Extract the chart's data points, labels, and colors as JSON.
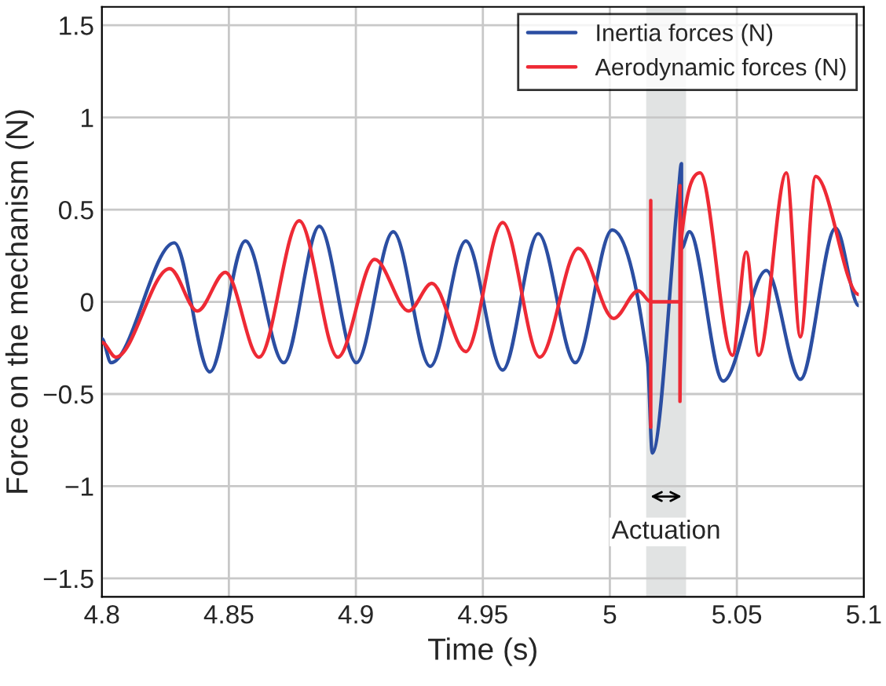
{
  "chart_data": {
    "type": "line",
    "xlabel": "Time (s)",
    "ylabel": "Force on the mechanism (N)",
    "xlim": [
      4.8,
      5.1
    ],
    "xticks": [
      4.8,
      4.85,
      4.9,
      4.95,
      5,
      5.05,
      5.1
    ],
    "ylim": [
      -1.6,
      1.6
    ],
    "yticks": [
      {
        "value": -1.5,
        "label": "−1.5"
      },
      {
        "value": -1,
        "label": "−1"
      },
      {
        "value": -0.5,
        "label": "−0.5"
      },
      0,
      0.5,
      1,
      1.5
    ],
    "grid": true,
    "legend": "top right",
    "line_style": "solid",
    "bands": [
      {
        "axis": "x",
        "from": 5.0143,
        "to": 5.03,
        "label": "Actuation",
        "color": "#e1e3e3"
      }
    ],
    "series": [
      {
        "name": "Inertia forces (N)",
        "color": "#2b4ea2",
        "x": [
          4.8,
          4.8036,
          4.8285,
          4.8425,
          4.8565,
          4.8716,
          4.8856,
          4.9002,
          4.9147,
          4.9293,
          4.9433,
          4.9578,
          4.9718,
          4.9864,
          5.0009,
          5.0149,
          5.0167,
          5.027,
          5.0282,
          5.0282,
          5.0313,
          5.0446,
          5.0616,
          5.075,
          5.0889,
          5.098
        ],
        "values": [
          -0.2,
          -0.33,
          0.32,
          -0.38,
          0.33,
          -0.33,
          0.41,
          -0.33,
          0.38,
          -0.35,
          0.33,
          -0.37,
          0.37,
          -0.33,
          0.39,
          -0.33,
          -0.82,
          0.6,
          0.75,
          0.29,
          0.38,
          -0.43,
          0.17,
          -0.42,
          0.4,
          -0.02
        ]
      },
      {
        "name": "Aerodynamic forces (N)",
        "color": "#ee2a35",
        "x": [
          4.8,
          4.8055,
          4.8267,
          4.8376,
          4.8486,
          4.8619,
          4.8777,
          4.8929,
          4.9074,
          4.9208,
          4.9299,
          4.9433,
          4.9578,
          4.9724,
          4.9876,
          5.0015,
          5.0112,
          5.0161,
          5.0161,
          5.0161,
          5.0161,
          5.0276,
          5.0276,
          5.0276,
          5.0282,
          5.0355,
          5.0483,
          5.0537,
          5.0586,
          5.0695,
          5.075,
          5.081,
          5.098
        ],
        "values": [
          -0.22,
          -0.3,
          0.18,
          -0.05,
          0.16,
          -0.3,
          0.44,
          -0.3,
          0.23,
          -0.05,
          0.1,
          -0.27,
          0.43,
          -0.3,
          0.29,
          -0.09,
          0.06,
          0,
          0.55,
          -0.68,
          0,
          0,
          0.63,
          -0.54,
          0.35,
          0.7,
          -0.29,
          0.27,
          -0.29,
          0.7,
          -0.19,
          0.68,
          0.04
        ]
      }
    ]
  }
}
